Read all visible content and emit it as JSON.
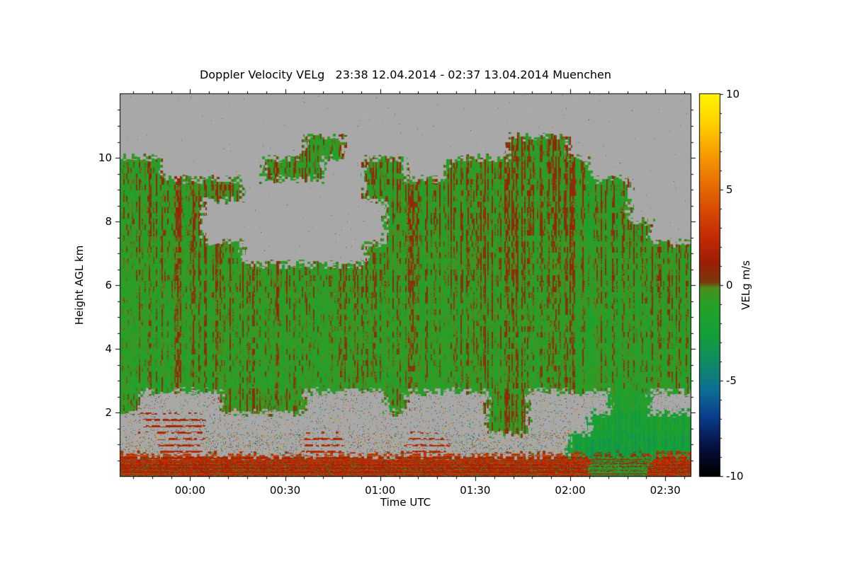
{
  "title": "Doppler Velocity VELg   23:38 12.04.2014 - 02:37 13.04.2014 Muenchen",
  "chart_data": {
    "type": "heatmap",
    "title": "Doppler Velocity VELg   23:38 12.04.2014 - 02:37 13.04.2014 Muenchen",
    "station": "Muenchen",
    "time_start": "23:38 12.04.2014",
    "time_end": "02:37 13.04.2014",
    "xlabel": "Time UTC",
    "ylabel": "Height AGL km",
    "value_label": "VELg m/s",
    "value_range": [
      -10,
      10
    ],
    "x_span_minutes": 180,
    "x_ticks": [
      {
        "label": "00:00",
        "minute": 22
      },
      {
        "label": "00:30",
        "minute": 52
      },
      {
        "label": "01:00",
        "minute": 82
      },
      {
        "label": "01:30",
        "minute": 112
      },
      {
        "label": "02:00",
        "minute": 142
      },
      {
        "label": "02:30",
        "minute": 172
      }
    ],
    "x_minor_step_minutes": 6,
    "y_range_km": [
      0,
      12
    ],
    "y_ticks_km": [
      2,
      4,
      6,
      8,
      10
    ],
    "y_minor_step_km": 0.5,
    "colorbar_ticks": [
      10,
      5,
      0,
      -5,
      -10
    ],
    "no_data_color": "#a8a8a8",
    "colormap_stops": [
      [
        -10,
        "#000000"
      ],
      [
        -8.5,
        "#05103f"
      ],
      [
        -7,
        "#0a3a8a"
      ],
      [
        -5.5,
        "#0e6e95"
      ],
      [
        -4,
        "#0e8d62"
      ],
      [
        -2.5,
        "#15a037"
      ],
      [
        -1,
        "#26a128"
      ],
      [
        -0.15,
        "#4d8f1e"
      ],
      [
        0.15,
        "#7c3a0e"
      ],
      [
        1.2,
        "#9e1e05"
      ],
      [
        2.5,
        "#c32b05"
      ],
      [
        4,
        "#d94d04"
      ],
      [
        5.5,
        "#ea7406"
      ],
      [
        7,
        "#f6a100"
      ],
      [
        8.5,
        "#ffd200"
      ],
      [
        10,
        "#fff400"
      ]
    ],
    "grid": {
      "rows": 18,
      "cols": 28,
      "order": "top_to_bottom",
      "cell_height_km": 0.667,
      "cell_width_minutes": 6.43,
      "units": "m/s",
      "no_data": null,
      "values": [
        [
          null,
          null,
          null,
          null,
          null,
          null,
          null,
          null,
          null,
          null,
          null,
          null,
          null,
          null,
          null,
          null,
          null,
          null,
          null,
          null,
          null,
          null,
          null,
          null,
          null,
          null,
          null,
          null
        ],
        [
          null,
          null,
          null,
          null,
          null,
          null,
          null,
          null,
          null,
          null,
          null,
          null,
          null,
          null,
          null,
          null,
          null,
          null,
          null,
          null,
          null,
          null,
          null,
          null,
          null,
          null,
          null,
          null
        ],
        [
          null,
          null,
          null,
          null,
          null,
          null,
          null,
          null,
          null,
          -0.5,
          -0.5,
          null,
          null,
          null,
          null,
          null,
          null,
          null,
          null,
          -0.5,
          -0.5,
          -0.5,
          null,
          null,
          null,
          null,
          null,
          null
        ],
        [
          -0.5,
          -0.5,
          null,
          null,
          null,
          null,
          null,
          -0.5,
          -0.5,
          -0.5,
          null,
          null,
          -0.5,
          -0.5,
          null,
          null,
          -0.5,
          -0.5,
          -0.5,
          -0.5,
          -0.5,
          -0.5,
          -0.5,
          null,
          null,
          null,
          null,
          null
        ],
        [
          -0.5,
          -0.5,
          -0.5,
          -0.5,
          -0.5,
          -0.5,
          null,
          null,
          null,
          null,
          null,
          null,
          -0.5,
          -0.5,
          -0.5,
          -0.5,
          -0.5,
          -0.5,
          -0.5,
          -0.5,
          -0.5,
          -0.5,
          -0.5,
          -0.5,
          -0.5,
          null,
          null,
          null
        ],
        [
          -0.5,
          -0.5,
          -0.5,
          -0.5,
          null,
          null,
          null,
          null,
          null,
          null,
          null,
          null,
          null,
          -0.5,
          -0.5,
          -0.5,
          -0.5,
          -0.5,
          -0.5,
          -0.5,
          -0.5,
          -0.5,
          -0.5,
          -0.5,
          -0.5,
          null,
          null,
          null
        ],
        [
          -0.5,
          -0.5,
          -0.5,
          -0.5,
          null,
          null,
          null,
          null,
          null,
          null,
          null,
          null,
          null,
          -0.5,
          -0.5,
          -0.5,
          -0.5,
          -0.5,
          -0.5,
          -0.5,
          -0.5,
          -0.5,
          -0.5,
          -0.5,
          -0.5,
          -0.5,
          null,
          null
        ],
        [
          -0.5,
          -0.5,
          -0.5,
          -0.5,
          -0.5,
          -0.5,
          null,
          null,
          null,
          null,
          null,
          null,
          -0.5,
          -0.5,
          -0.5,
          -0.5,
          -0.5,
          -0.5,
          -0.5,
          -0.5,
          -0.5,
          -0.5,
          -0.5,
          -0.5,
          -0.5,
          -0.5,
          -0.5,
          -0.5
        ],
        [
          -0.5,
          -0.5,
          -0.5,
          -0.5,
          -0.5,
          -0.5,
          -0.5,
          -0.5,
          -0.5,
          -0.5,
          -0.5,
          -0.5,
          -0.5,
          -0.5,
          -0.5,
          -0.5,
          -0.5,
          -0.5,
          -0.5,
          -0.5,
          -0.5,
          -0.5,
          -0.5,
          -0.5,
          -0.5,
          -0.5,
          -0.5,
          -0.5
        ],
        [
          -0.6,
          -0.6,
          -0.6,
          -0.6,
          -0.6,
          -0.6,
          -0.6,
          -0.6,
          -0.6,
          -0.6,
          -0.6,
          -0.6,
          -0.6,
          -0.6,
          -0.6,
          -0.6,
          -0.6,
          -0.6,
          -0.6,
          -0.6,
          -0.6,
          -0.6,
          -0.6,
          -0.6,
          -0.6,
          -0.6,
          -0.6,
          -0.6
        ],
        [
          -0.7,
          -0.7,
          -0.7,
          -0.7,
          -0.7,
          -0.7,
          -0.7,
          -0.7,
          -0.7,
          -0.7,
          -0.7,
          -0.7,
          -0.7,
          -0.7,
          -0.7,
          -0.7,
          -0.7,
          -0.7,
          -0.7,
          -0.7,
          -0.7,
          -0.7,
          -0.7,
          -0.7,
          -0.7,
          -0.7,
          -0.7,
          -0.7
        ],
        [
          -0.7,
          -0.7,
          -0.7,
          -0.7,
          -0.7,
          -0.7,
          -0.7,
          -0.7,
          -0.7,
          -0.7,
          -0.7,
          -0.7,
          -0.7,
          -0.7,
          -0.7,
          -0.7,
          -0.7,
          -0.7,
          -0.7,
          -0.7,
          -0.7,
          -0.7,
          -0.7,
          -0.7,
          -0.7,
          -0.7,
          -0.7,
          -0.7
        ],
        [
          -0.7,
          -0.7,
          -0.7,
          -0.7,
          -0.7,
          -0.7,
          -0.7,
          -0.7,
          -0.7,
          -0.7,
          -0.7,
          -0.7,
          -0.7,
          -0.7,
          -0.7,
          -0.7,
          -0.7,
          -0.7,
          -0.7,
          -0.7,
          -0.7,
          -0.7,
          -0.7,
          -0.7,
          -0.7,
          -0.7,
          -0.7,
          -0.7
        ],
        [
          -0.8,
          -0.8,
          -0.8,
          -0.8,
          -0.8,
          -0.8,
          -0.8,
          -0.8,
          -0.8,
          -0.8,
          -0.8,
          -0.8,
          -0.8,
          -0.8,
          -0.8,
          -0.8,
          -0.8,
          -0.8,
          -0.8,
          -0.8,
          -0.8,
          -0.8,
          -0.8,
          -0.8,
          -0.8,
          -0.8,
          -0.8,
          -0.8
        ],
        [
          -0.5,
          null,
          null,
          null,
          null,
          -0.5,
          -0.5,
          -0.5,
          -0.5,
          null,
          null,
          null,
          null,
          -0.5,
          null,
          null,
          null,
          null,
          -0.5,
          -0.5,
          null,
          null,
          null,
          null,
          -1.5,
          -1.5,
          null,
          null
        ],
        [
          null,
          1.5,
          1.5,
          1.5,
          null,
          null,
          null,
          null,
          null,
          null,
          null,
          null,
          null,
          null,
          null,
          null,
          null,
          null,
          -0.5,
          -0.5,
          null,
          null,
          null,
          -2,
          -2,
          -2,
          -2,
          -2
        ],
        [
          null,
          null,
          2,
          2,
          null,
          null,
          null,
          null,
          null,
          2,
          2,
          null,
          null,
          null,
          2,
          2,
          null,
          null,
          null,
          null,
          null,
          null,
          -2.5,
          -2.5,
          -2.5,
          -2.5,
          -2.5,
          -2.5
        ],
        [
          2,
          2,
          2,
          2,
          2,
          2,
          2,
          2,
          2,
          2,
          2,
          2,
          2,
          2,
          2,
          2,
          2,
          2,
          2,
          2,
          2,
          2,
          2,
          0.5,
          0.5,
          0.5,
          2,
          2
        ]
      ]
    }
  }
}
